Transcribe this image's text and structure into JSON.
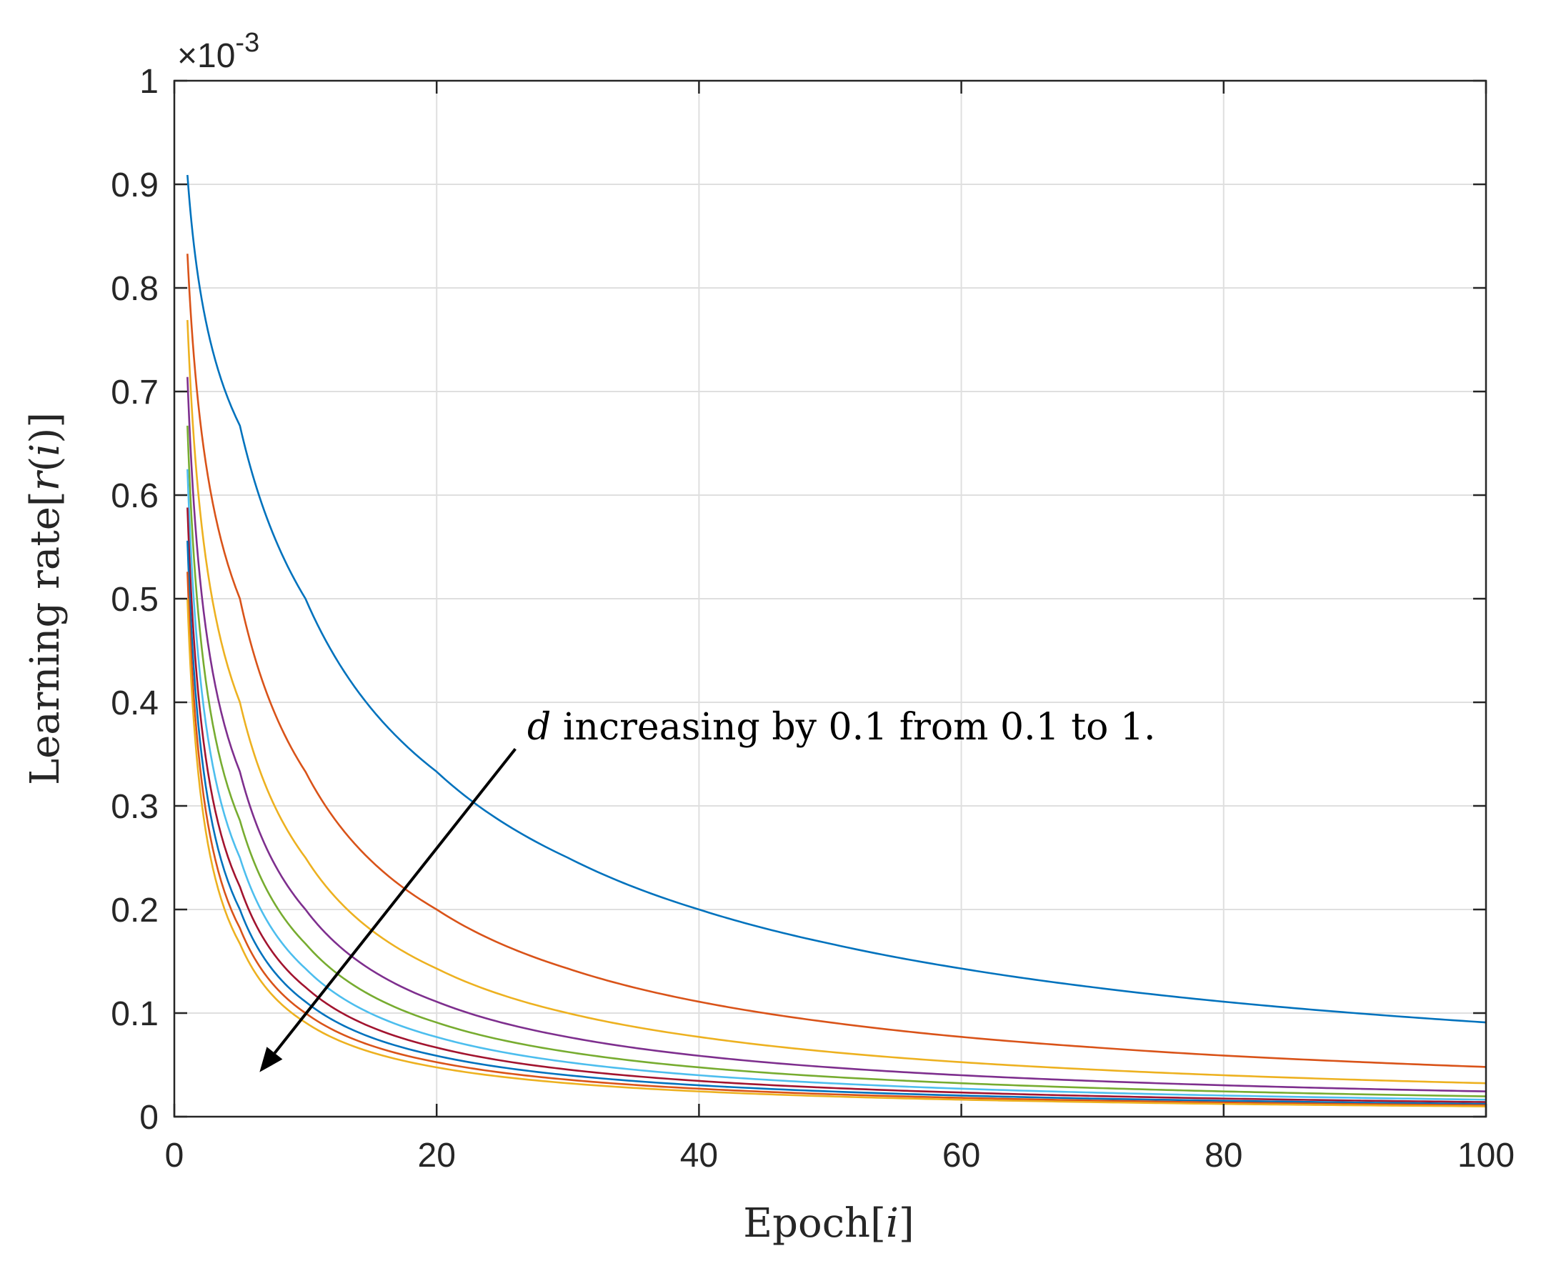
{
  "chart_data": {
    "type": "line",
    "xlabel_parts": [
      "Epoch[",
      "i",
      "]"
    ],
    "ylabel_parts": [
      "Learning rate[",
      "r",
      "(",
      "i",
      ")]"
    ],
    "y_exponent": {
      "base": "×10",
      "power": "-3"
    },
    "xlim": [
      0,
      100
    ],
    "ylim": [
      0,
      1
    ],
    "xticks": [
      "0",
      "20",
      "40",
      "60",
      "80",
      "100"
    ],
    "yticks": [
      "0",
      "0.1",
      "0.2",
      "0.3",
      "0.4",
      "0.5",
      "0.6",
      "0.7",
      "0.8",
      "0.9",
      "1"
    ],
    "grid": true,
    "box": true,
    "annotation": {
      "parts": [
        "d",
        " increasing by 0.1 from 0.1 to 1."
      ],
      "arrow_from": [
        26,
        0.355
      ],
      "arrow_to": [
        6.5,
        0.043
      ]
    },
    "series": [
      {
        "d": 0.1,
        "color": "#0072BD",
        "x": [
          1,
          5,
          10,
          20,
          30,
          40,
          50,
          60,
          70,
          80,
          90,
          100
        ],
        "y": [
          0.909,
          0.667,
          0.5,
          0.333,
          0.25,
          0.2,
          0.167,
          0.143,
          0.125,
          0.111,
          0.1,
          0.091
        ]
      },
      {
        "d": 0.2,
        "color": "#D95319",
        "x": [
          1,
          5,
          10,
          20,
          30,
          40,
          50,
          60,
          70,
          80,
          90,
          100
        ],
        "y": [
          0.833,
          0.5,
          0.333,
          0.2,
          0.143,
          0.111,
          0.091,
          0.077,
          0.067,
          0.059,
          0.053,
          0.048
        ]
      },
      {
        "d": 0.3,
        "color": "#EDB120",
        "x": [
          1,
          5,
          10,
          20,
          30,
          40,
          50,
          60,
          70,
          80,
          90,
          100
        ],
        "y": [
          0.769,
          0.4,
          0.25,
          0.143,
          0.1,
          0.077,
          0.0625,
          0.0526,
          0.0455,
          0.04,
          0.0357,
          0.0323
        ]
      },
      {
        "d": 0.4,
        "color": "#7E2F8E",
        "x": [
          1,
          5,
          10,
          20,
          30,
          40,
          50,
          60,
          70,
          80,
          90,
          100
        ],
        "y": [
          0.714,
          0.333,
          0.2,
          0.111,
          0.0769,
          0.0588,
          0.0476,
          0.04,
          0.0345,
          0.0303,
          0.027,
          0.0244
        ]
      },
      {
        "d": 0.5,
        "color": "#77AC30",
        "x": [
          1,
          5,
          10,
          20,
          30,
          40,
          50,
          60,
          70,
          80,
          90,
          100
        ],
        "y": [
          0.667,
          0.286,
          0.167,
          0.0909,
          0.0625,
          0.0476,
          0.0385,
          0.0323,
          0.0278,
          0.0244,
          0.0217,
          0.0196
        ]
      },
      {
        "d": 0.6,
        "color": "#4DBEEE",
        "x": [
          1,
          5,
          10,
          20,
          30,
          40,
          50,
          60,
          70,
          80,
          90,
          100
        ],
        "y": [
          0.625,
          0.25,
          0.143,
          0.0769,
          0.0526,
          0.04,
          0.0323,
          0.027,
          0.0233,
          0.0204,
          0.0182,
          0.0164
        ]
      },
      {
        "d": 0.7,
        "color": "#A2142F",
        "x": [
          1,
          5,
          10,
          20,
          30,
          40,
          50,
          60,
          70,
          80,
          90,
          100
        ],
        "y": [
          0.588,
          0.222,
          0.125,
          0.0667,
          0.0455,
          0.0345,
          0.0278,
          0.0233,
          0.02,
          0.0175,
          0.0156,
          0.0141
        ]
      },
      {
        "d": 0.8,
        "color": "#0072BD",
        "x": [
          1,
          5,
          10,
          20,
          30,
          40,
          50,
          60,
          70,
          80,
          90,
          100
        ],
        "y": [
          0.556,
          0.2,
          0.111,
          0.0588,
          0.04,
          0.0303,
          0.0244,
          0.0204,
          0.0175,
          0.0154,
          0.0137,
          0.0123
        ]
      },
      {
        "d": 0.9,
        "color": "#D95319",
        "x": [
          1,
          5,
          10,
          20,
          30,
          40,
          50,
          60,
          70,
          80,
          90,
          100
        ],
        "y": [
          0.526,
          0.182,
          0.1,
          0.0526,
          0.0357,
          0.027,
          0.0217,
          0.0182,
          0.0156,
          0.0137,
          0.0122,
          0.011
        ]
      },
      {
        "d": 1.0,
        "color": "#EDB120",
        "x": [
          1,
          5,
          10,
          20,
          30,
          40,
          50,
          60,
          70,
          80,
          90,
          100
        ],
        "y": [
          0.5,
          0.167,
          0.0909,
          0.0476,
          0.0323,
          0.0244,
          0.0196,
          0.0164,
          0.0141,
          0.0123,
          0.011,
          0.0099
        ]
      }
    ]
  }
}
